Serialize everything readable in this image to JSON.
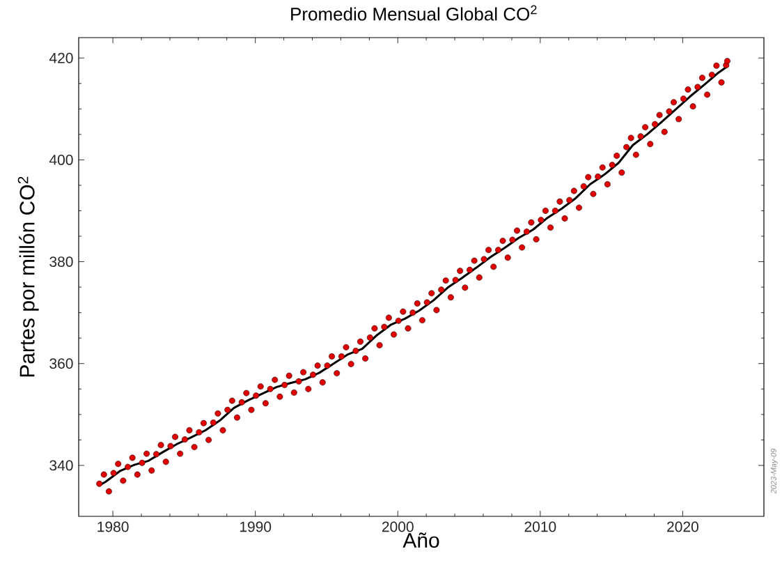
{
  "chart_data": {
    "type": "line",
    "title": "Promedio Mensual Global CO$^{2}$",
    "xlabel": "Año",
    "ylabel": "Partes por millón CO$^{2}$",
    "annotations": [
      "2023-May-09"
    ],
    "xlim": [
      1977.6,
      2025.7
    ],
    "ylim": [
      330,
      424
    ],
    "xticks": [
      1980,
      1990,
      2000,
      2010,
      2020
    ],
    "yticks": [
      340,
      360,
      380,
      400,
      420
    ],
    "series": [
      {
        "type": "scatter",
        "color": "#e00000",
        "marker": "circle",
        "x": [
          1979.05,
          1979.37,
          1979.72,
          1980.05,
          1980.37,
          1980.72,
          1981.05,
          1981.37,
          1981.72,
          1982.05,
          1982.37,
          1982.72,
          1983.05,
          1983.37,
          1983.72,
          1984.05,
          1984.37,
          1984.72,
          1985.05,
          1985.37,
          1985.72,
          1986.05,
          1986.37,
          1986.72,
          1987.05,
          1987.37,
          1987.72,
          1988.05,
          1988.37,
          1988.72,
          1989.05,
          1989.37,
          1989.72,
          1990.05,
          1990.37,
          1990.72,
          1991.05,
          1991.37,
          1991.72,
          1992.05,
          1992.37,
          1992.72,
          1993.05,
          1993.37,
          1993.72,
          1994.05,
          1994.37,
          1994.72,
          1995.05,
          1995.37,
          1995.72,
          1996.05,
          1996.37,
          1996.72,
          1997.05,
          1997.37,
          1997.72,
          1998.05,
          1998.37,
          1998.72,
          1999.05,
          1999.37,
          1999.72,
          2000.05,
          2000.37,
          2000.72,
          2001.05,
          2001.37,
          2001.72,
          2002.05,
          2002.37,
          2002.72,
          2003.05,
          2003.37,
          2003.72,
          2004.05,
          2004.37,
          2004.72,
          2005.05,
          2005.37,
          2005.72,
          2006.05,
          2006.37,
          2006.72,
          2007.05,
          2007.37,
          2007.72,
          2008.05,
          2008.37,
          2008.72,
          2009.05,
          2009.37,
          2009.72,
          2010.05,
          2010.37,
          2010.72,
          2011.05,
          2011.37,
          2011.72,
          2012.05,
          2012.37,
          2012.72,
          2013.05,
          2013.37,
          2013.72,
          2014.05,
          2014.37,
          2014.72,
          2015.05,
          2015.37,
          2015.72,
          2016.05,
          2016.37,
          2016.72,
          2017.05,
          2017.37,
          2017.72,
          2018.05,
          2018.37,
          2018.72,
          2019.05,
          2019.37,
          2019.72,
          2020.05,
          2020.37,
          2020.72,
          2021.05,
          2021.37,
          2021.72,
          2022.05,
          2022.37,
          2022.72,
          2023.05,
          2023.13
        ],
        "values": [
          336.4,
          338.2,
          334.9,
          338.5,
          340.3,
          337.0,
          339.7,
          341.5,
          338.2,
          340.5,
          342.3,
          339.0,
          342.2,
          344.0,
          340.7,
          343.8,
          345.6,
          342.3,
          345.1,
          346.9,
          343.6,
          346.5,
          348.3,
          345.0,
          348.4,
          350.2,
          346.9,
          350.9,
          352.7,
          349.4,
          352.4,
          354.2,
          350.9,
          353.7,
          355.5,
          352.2,
          355.0,
          356.8,
          353.5,
          355.8,
          357.6,
          354.3,
          356.5,
          358.3,
          355.0,
          357.8,
          359.6,
          356.3,
          359.6,
          361.4,
          358.1,
          361.4,
          363.2,
          359.9,
          362.5,
          364.3,
          361.0,
          365.1,
          366.9,
          363.6,
          367.2,
          369.0,
          365.7,
          368.4,
          370.2,
          366.9,
          370.0,
          371.8,
          368.5,
          372.0,
          373.8,
          370.5,
          374.5,
          376.3,
          373.0,
          376.4,
          378.2,
          374.9,
          378.4,
          380.2,
          376.9,
          380.5,
          382.3,
          379.0,
          382.3,
          384.1,
          380.8,
          384.3,
          386.1,
          382.8,
          385.9,
          387.7,
          384.4,
          388.2,
          390.0,
          386.7,
          390.0,
          391.8,
          388.5,
          392.1,
          393.9,
          390.6,
          394.8,
          396.6,
          393.3,
          396.7,
          398.5,
          395.2,
          399.0,
          400.8,
          397.5,
          402.5,
          404.3,
          401.0,
          404.6,
          406.4,
          403.1,
          407.0,
          408.8,
          405.5,
          409.5,
          411.3,
          408.0,
          412.0,
          413.8,
          410.5,
          414.3,
          416.1,
          412.8,
          416.7,
          418.5,
          415.2,
          418.6,
          419.4
        ]
      },
      {
        "color": "#000000",
        "line_style": "solid",
        "marker": "none",
        "x": [
          1979.0,
          1979.5,
          1980.5,
          1981.5,
          1982.5,
          1983.5,
          1984.5,
          1985.5,
          1986.5,
          1987.5,
          1988.5,
          1989.5,
          1990.5,
          1991.5,
          1992.5,
          1993.5,
          1994.5,
          1995.5,
          1996.5,
          1997.5,
          1998.5,
          1999.5,
          2000.5,
          2001.5,
          2002.5,
          2003.5,
          2004.5,
          2005.5,
          2006.5,
          2007.5,
          2008.5,
          2009.5,
          2010.5,
          2011.5,
          2012.5,
          2013.5,
          2014.5,
          2015.5,
          2016.5,
          2017.5,
          2018.5,
          2019.5,
          2020.5,
          2021.5,
          2022.5,
          2023.2
        ],
        "values": [
          336.0,
          336.8,
          338.9,
          340.1,
          340.9,
          342.6,
          344.2,
          345.5,
          346.9,
          348.8,
          351.3,
          352.8,
          354.1,
          355.4,
          356.2,
          356.9,
          358.2,
          360.0,
          361.8,
          362.9,
          365.5,
          367.6,
          368.8,
          370.4,
          372.4,
          374.9,
          376.8,
          378.8,
          380.9,
          382.7,
          384.7,
          386.3,
          388.6,
          390.4,
          392.5,
          395.2,
          397.1,
          399.4,
          402.9,
          405.0,
          407.4,
          409.9,
          412.4,
          414.7,
          417.1,
          418.5
        ]
      }
    ]
  }
}
